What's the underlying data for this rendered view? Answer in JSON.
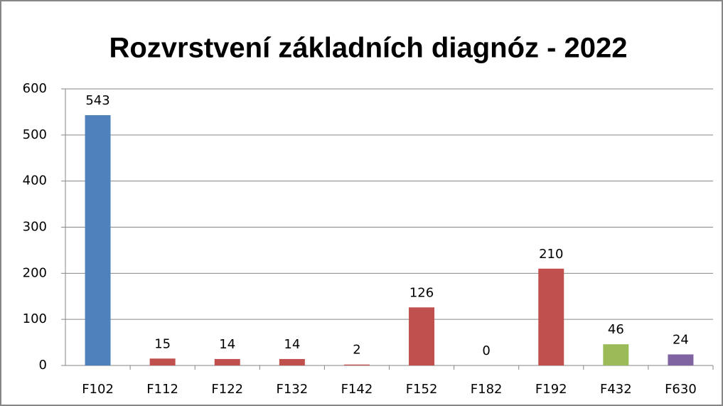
{
  "chart_data": {
    "type": "bar",
    "title": "Rozvrstvení základních diagnóz - 2022",
    "categories": [
      "F102",
      "F112",
      "F122",
      "F132",
      "F142",
      "F152",
      "F182",
      "F192",
      "F432",
      "F630"
    ],
    "values": [
      543,
      15,
      14,
      14,
      2,
      126,
      0,
      210,
      46,
      24
    ],
    "colors": [
      "#4f81bd",
      "#c0504d",
      "#c0504d",
      "#c0504d",
      "#c0504d",
      "#c0504d",
      "#c0504d",
      "#c0504d",
      "#9bbb59",
      "#8064a2"
    ],
    "ylim": [
      0,
      600
    ],
    "yticks": [
      0,
      100,
      200,
      300,
      400,
      500,
      600
    ],
    "grid": true
  }
}
